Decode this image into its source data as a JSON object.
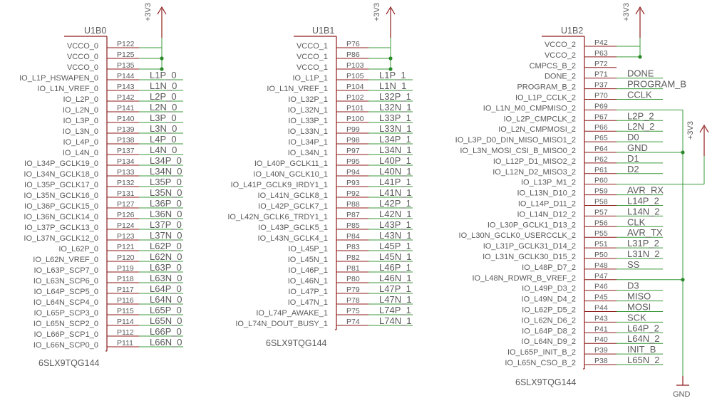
{
  "parts": [
    {
      "ref": "U1B0",
      "value": "6SLX9TQG144",
      "power": "+3V3",
      "pins": [
        {
          "name": "VCCO_0",
          "num": "P122",
          "net": ""
        },
        {
          "name": "VCCO_0",
          "num": "P125",
          "net": ""
        },
        {
          "name": "VCCO_0",
          "num": "P135",
          "net": ""
        },
        {
          "name": "IO_L1P_HSWAPEN_0",
          "num": "P144",
          "net": "L1P_0"
        },
        {
          "name": "IO_L1N_VREF_0",
          "num": "P143",
          "net": "L1N_0"
        },
        {
          "name": "IO_L2P_0",
          "num": "P142",
          "net": "L2P_0"
        },
        {
          "name": "IO_L2N_0",
          "num": "P141",
          "net": "L2N_0"
        },
        {
          "name": "IO_L3P_0",
          "num": "P140",
          "net": "L3P_0"
        },
        {
          "name": "IO_L3N_0",
          "num": "P139",
          "net": "L3N_0"
        },
        {
          "name": "IO_L4P_0",
          "num": "P138",
          "net": "L4P_0"
        },
        {
          "name": "IO_L4N_0",
          "num": "P137",
          "net": "L4N_0"
        },
        {
          "name": "IO_L34P_GCLK19_0",
          "num": "P134",
          "net": "L34P_0"
        },
        {
          "name": "IO_L34N_GCLK18_0",
          "num": "P133",
          "net": "L34N_0"
        },
        {
          "name": "IO_L35P_GCLK17_0",
          "num": "P132",
          "net": "L35P_0"
        },
        {
          "name": "IO_L35N_GCLK16_0",
          "num": "P131",
          "net": "L35N_0"
        },
        {
          "name": "IO_L36P_GCLK15_0",
          "num": "P127",
          "net": "L36P_0"
        },
        {
          "name": "IO_L36N_GCLK14_0",
          "num": "P126",
          "net": "L36N_0"
        },
        {
          "name": "IO_L37P_GCLK13_0",
          "num": "P124",
          "net": "L37P_0"
        },
        {
          "name": "IO_L37N_GCLK12_0",
          "num": "P123",
          "net": "L37N_0"
        },
        {
          "name": "IO_L62P_0",
          "num": "P121",
          "net": "L62P_0"
        },
        {
          "name": "IO_L62N_VREF_0",
          "num": "P120",
          "net": "L62N_0"
        },
        {
          "name": "IO_L63P_SCP7_0",
          "num": "P119",
          "net": "L63P_0"
        },
        {
          "name": "IO_L63N_SCP6_0",
          "num": "P118",
          "net": "L63N_0"
        },
        {
          "name": "IO_L64P_SCP5_0",
          "num": "P117",
          "net": "L64P_0"
        },
        {
          "name": "IO_L64N_SCP4_0",
          "num": "P116",
          "net": "L64N_0"
        },
        {
          "name": "IO_L65P_SCP3_0",
          "num": "P115",
          "net": "L65P_0"
        },
        {
          "name": "IO_L65N_SCP2_0",
          "num": "P114",
          "net": "L65N_0"
        },
        {
          "name": "IO_L66P_SCP1_0",
          "num": "P112",
          "net": "L66P_0"
        },
        {
          "name": "IO_L66N_SCP0_0",
          "num": "P111",
          "net": "L66N_0"
        }
      ]
    },
    {
      "ref": "U1B1",
      "value": "6SLX9TQG144",
      "power": "+3V3",
      "pins": [
        {
          "name": "VCCO_1",
          "num": "P76",
          "net": ""
        },
        {
          "name": "VCCO_1",
          "num": "P86",
          "net": ""
        },
        {
          "name": "VCCO_1",
          "num": "P103",
          "net": ""
        },
        {
          "name": "IO_L1P_1",
          "num": "P105",
          "net": "L1P_1"
        },
        {
          "name": "IO_L1N_VREF_1",
          "num": "P104",
          "net": "L1N_1"
        },
        {
          "name": "IO_L32P_1",
          "num": "P102",
          "net": "L32P_1"
        },
        {
          "name": "IO_L32N_1",
          "num": "P101",
          "net": "L32N_1"
        },
        {
          "name": "IO_L33P_1",
          "num": "P100",
          "net": "L33P_1"
        },
        {
          "name": "IO_L33N_1",
          "num": "P99",
          "net": "L33N_1"
        },
        {
          "name": "IO_L34P_1",
          "num": "P98",
          "net": "L34P_1"
        },
        {
          "name": "IO_L34N_1",
          "num": "P97",
          "net": "L34N_1"
        },
        {
          "name": "IO_L40P_GCLK11_1",
          "num": "P95",
          "net": "L40P_1"
        },
        {
          "name": "IO_L40N_GCLK10_1",
          "num": "P94",
          "net": "L40N_1"
        },
        {
          "name": "IO_L41P_GCLK9_IRDY1_1",
          "num": "P93",
          "net": "L41P_1"
        },
        {
          "name": "IO_L41N_GCLK8_1",
          "num": "P92",
          "net": "L41N_1"
        },
        {
          "name": "IO_L42P_GCLK7_1",
          "num": "P88",
          "net": "L42P_1"
        },
        {
          "name": "IO_L42N_GCLK6_TRDY1_1",
          "num": "P87",
          "net": "L42N_1"
        },
        {
          "name": "IO_L43P_GCLK5_1",
          "num": "P85",
          "net": "L43P_1"
        },
        {
          "name": "IO_L43N_GCLK4_1",
          "num": "P84",
          "net": "L43N_1"
        },
        {
          "name": "IO_L45P_1",
          "num": "P83",
          "net": "L45P_1"
        },
        {
          "name": "IO_L45N_1",
          "num": "P82",
          "net": "L45N_1"
        },
        {
          "name": "IO_L46P_1",
          "num": "P81",
          "net": "L46P_1"
        },
        {
          "name": "IO_L46N_1",
          "num": "P80",
          "net": "L46N_1"
        },
        {
          "name": "IO_L47P_1",
          "num": "P79",
          "net": "L47P_1"
        },
        {
          "name": "IO_L47N_1",
          "num": "P78",
          "net": "L47N_1"
        },
        {
          "name": "IO_L74P_AWAKE_1",
          "num": "P75",
          "net": "L74P_1"
        },
        {
          "name": "IO_L74N_DOUT_BUSY_1",
          "num": "P74",
          "net": "L74N_1"
        }
      ]
    },
    {
      "ref": "U1B2",
      "value": "6SLX9TQG144",
      "power": "+3V3",
      "pins": [
        {
          "name": "VCCO_2",
          "num": "P42",
          "net": ""
        },
        {
          "name": "VCCO_2",
          "num": "P63",
          "net": ""
        },
        {
          "name": "CMPCS_B_2",
          "num": "P72",
          "net": ""
        },
        {
          "name": "DONE_2",
          "num": "P71",
          "net": "DONE"
        },
        {
          "name": "PROGRAM_B_2",
          "num": "P37",
          "net": "PROGRAM_B"
        },
        {
          "name": "IO_L1P_CCLK_2",
          "num": "P70",
          "net": "CCLK"
        },
        {
          "name": "IO_L1N_M0_CMPMISO_2",
          "num": "P69",
          "net": ""
        },
        {
          "name": "IO_L2P_CMPCLK_2",
          "num": "P67",
          "net": "L2P_2"
        },
        {
          "name": "IO_L2N_CMPMOSI_2",
          "num": "P66",
          "net": "L2N_2"
        },
        {
          "name": "IO_L3P_D0_DIN_MISO_MISO1_2",
          "num": "P65",
          "net": "D0"
        },
        {
          "name": "IO_L3N_MOSI_CSI_B_MISO0_2",
          "num": "P64",
          "net": "GND"
        },
        {
          "name": "IO_L12P_D1_MISO2_2",
          "num": "P62",
          "net": "D1"
        },
        {
          "name": "IO_L12N_D2_MISO3_2",
          "num": "P61",
          "net": "D2"
        },
        {
          "name": "IO_L13P_M1_2",
          "num": "P60",
          "net": ""
        },
        {
          "name": "IO_L13N_D10_2",
          "num": "P59",
          "net": "AVR_RX"
        },
        {
          "name": "IO_L14P_D11_2",
          "num": "P58",
          "net": "L14P_2"
        },
        {
          "name": "IO_L14N_D12_2",
          "num": "P57",
          "net": "L14N_2"
        },
        {
          "name": "IO_L30P_GCLK1_D13_2",
          "num": "P56",
          "net": "CLK"
        },
        {
          "name": "IO_L30N_GCLK0_USERCCLK_2",
          "num": "P55",
          "net": "AVR_TX"
        },
        {
          "name": "IO_L31P_GCLK31_D14_2",
          "num": "P51",
          "net": "L31P_2"
        },
        {
          "name": "IO_L31N_GCLK30_D15_2",
          "num": "P50",
          "net": "L31N_2"
        },
        {
          "name": "IO_L48P_D7_2",
          "num": "P48",
          "net": "SS"
        },
        {
          "name": "IO_L48N_RDWR_B_VREF_2",
          "num": "P47",
          "net": ""
        },
        {
          "name": "IO_L49P_D3_2",
          "num": "P46",
          "net": "D3"
        },
        {
          "name": "IO_L49N_D4_2",
          "num": "P45",
          "net": "MISO"
        },
        {
          "name": "IO_L62P_D5_2",
          "num": "P44",
          "net": "MOSI"
        },
        {
          "name": "IO_L62N_D6_2",
          "num": "P43",
          "net": "SCK"
        },
        {
          "name": "IO_L64P_D8_2",
          "num": "P41",
          "net": "L64P_2"
        },
        {
          "name": "IO_L64N_D9_2",
          "num": "P40",
          "net": "L64N_2"
        },
        {
          "name": "IO_L65P_INIT_B_2",
          "num": "P39",
          "net": "INIT_B"
        },
        {
          "name": "IO_L65N_CSO_B_2",
          "num": "P38",
          "net": "L65N_2"
        }
      ]
    }
  ],
  "extra_power": "+3V3",
  "ground": "GND",
  "colors": {
    "symbol": "#8e1a1a",
    "wire": "#3a9a3a",
    "junction": "#2a8a2a",
    "text": "#5a5a5a"
  }
}
